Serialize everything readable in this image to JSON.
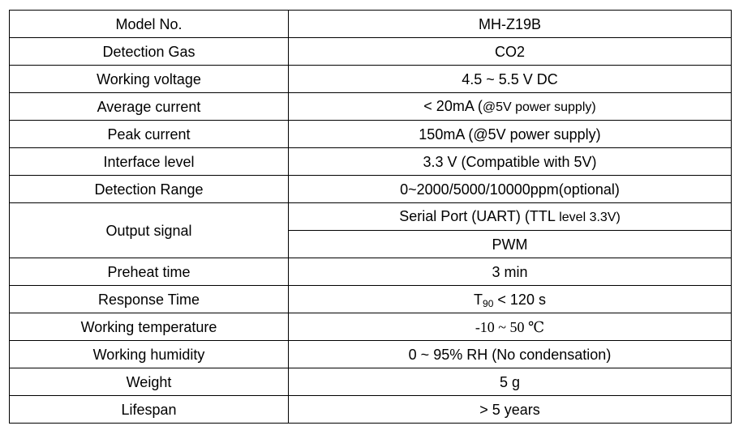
{
  "rows": [
    {
      "param": "Model No.",
      "value": "MH-Z19B"
    },
    {
      "param": "Detection Gas",
      "value": "CO2"
    },
    {
      "param": "Working voltage",
      "value": "4.5 ~ 5.5 V DC"
    },
    {
      "param": "Average current",
      "value": "< 20mA (",
      "value_small": "@5V power supply)"
    },
    {
      "param": "Peak current",
      "value": "150mA (@5V power supply)"
    },
    {
      "param": "Interface level",
      "value": "3.3 V (Compatible with 5V)"
    },
    {
      "param": "Detection Range",
      "value": "0~2000/5000/10000ppm(optional)"
    },
    {
      "param": "Output signal",
      "values": [
        {
          "value": "Serial Port (UART) (TTL ",
          "value_small": "level 3.3V)"
        },
        {
          "value": "PWM"
        }
      ]
    },
    {
      "param": "Preheat time",
      "value": "3 min"
    },
    {
      "param": "Response Time",
      "value_prefix": "T",
      "value_sub": "90",
      "value": " < 120 s"
    },
    {
      "param": "Working temperature",
      "value": "-10 ~ 50 ℃"
    },
    {
      "param": "Working humidity",
      "value": "0 ~ 95% RH (No condensation)"
    },
    {
      "param": "Weight",
      "value": "5 g"
    },
    {
      "param": "Lifespan",
      "value": "> 5 years"
    }
  ]
}
